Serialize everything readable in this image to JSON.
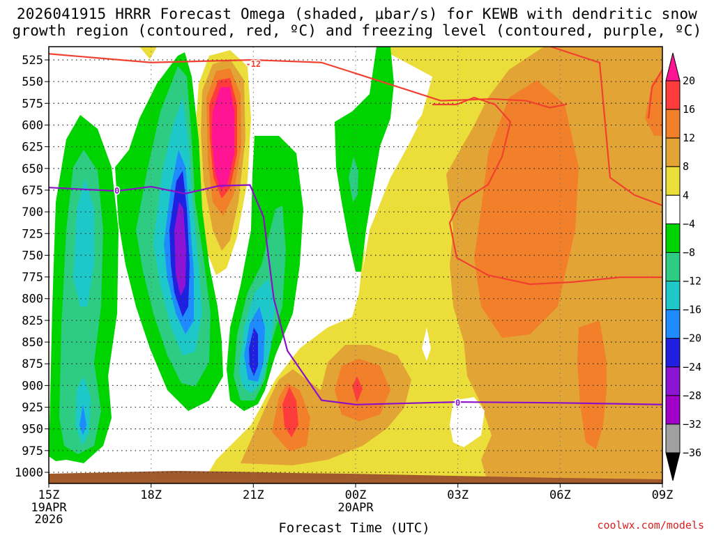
{
  "title_line1": "2026041915 HRRR Forecast Omega (shaded, μbar/s) for KEWB with dendritic snow",
  "title_line2": "growth region (contoured, red, ºC) and freezing level (contoured, purple, ºC)",
  "credit": "coolwx.com/models",
  "chart_data": {
    "type": "heatmap",
    "title": "2026041915 HRRR Forecast Omega (shaded, μbar/s) for KEWB with dendritic snow growth region (contoured, red, ºC) and freezing level (contoured, purple, ºC)",
    "xlabel": "Forecast Time (UTC)",
    "ylabel": "",
    "x_ticks": [
      {
        "hour": 0,
        "label": "15Z",
        "sub1": "19APR",
        "sub2": "2026"
      },
      {
        "hour": 3,
        "label": "18Z",
        "sub1": "",
        "sub2": ""
      },
      {
        "hour": 6,
        "label": "21Z",
        "sub1": "",
        "sub2": ""
      },
      {
        "hour": 9,
        "label": "00Z",
        "sub1": "20APR",
        "sub2": ""
      },
      {
        "hour": 12,
        "label": "03Z",
        "sub1": "",
        "sub2": ""
      },
      {
        "hour": 15,
        "label": "06Z",
        "sub1": "",
        "sub2": ""
      },
      {
        "hour": 18,
        "label": "09Z",
        "sub1": "",
        "sub2": ""
      }
    ],
    "xlim_hours": [
      0,
      18
    ],
    "y_ticks": [
      525,
      550,
      575,
      600,
      625,
      650,
      675,
      700,
      725,
      750,
      775,
      800,
      825,
      850,
      875,
      900,
      925,
      950,
      975,
      1000
    ],
    "ylim_hpa": [
      1013,
      510
    ],
    "grid": true,
    "colorbar": {
      "labels": [
        "20",
        "16",
        "12",
        "8",
        "4",
        "−4",
        "−8",
        "−12",
        "−16",
        "−20",
        "−24",
        "−28",
        "−32",
        "−36"
      ],
      "colors": [
        "#ff1493",
        "#ff3c3c",
        "#f27f2a",
        "#e3a436",
        "#ebde3b",
        "#ffffff",
        "#00d400",
        "#2ecb82",
        "#1fc8c8",
        "#1e8cff",
        "#2020e0",
        "#8c14d2",
        "#a000c8",
        "#a0a0a0",
        "#000000"
      ]
    },
    "omega_features": [
      {
        "value": -12,
        "center": [
          1.0,
          700
        ],
        "note": "western green/teal column"
      },
      {
        "value": -12,
        "center": [
          1.0,
          930
        ],
        "note": "lower-left cyan blob"
      },
      {
        "value": -26,
        "center": [
          3.9,
          720
        ],
        "note": "purple core, strongest ascent"
      },
      {
        "value": 20,
        "center": [
          5.0,
          580
        ],
        "note": "pink core descent aloft"
      },
      {
        "value": -20,
        "center": [
          6.0,
          830
        ],
        "note": "blue core low levels"
      },
      {
        "value": 16,
        "center": [
          7.1,
          910
        ],
        "note": "red low-level descent"
      },
      {
        "value": 16,
        "center": [
          9.0,
          880
        ],
        "note": "small red spot"
      },
      {
        "value": 12,
        "center": [
          15.0,
          650
        ],
        "note": "broad orange descent"
      }
    ],
    "series": [
      {
        "name": "-12",
        "color": "#f04030",
        "x": [
          0,
          3,
          6,
          8,
          10,
          11.5,
          13,
          14,
          14.7,
          15.2
        ],
        "y": [
          518,
          528,
          525,
          528,
          553,
          572,
          570,
          572,
          580,
          576
        ]
      },
      {
        "name": "0",
        "color": "#8a10c8",
        "x": [
          0,
          2,
          3,
          4,
          5,
          5.9,
          6.3,
          6.6,
          7.0,
          8.0,
          9.0,
          12,
          15,
          18
        ],
        "y": [
          672,
          676,
          671,
          679,
          670,
          669,
          706,
          800,
          860,
          917,
          922,
          919,
          920,
          922
        ]
      }
    ]
  }
}
